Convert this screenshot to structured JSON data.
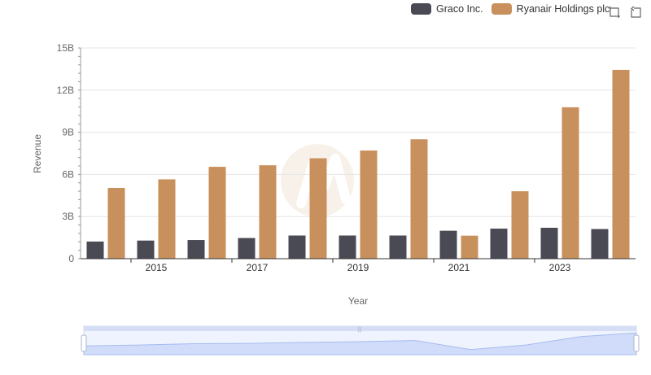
{
  "legend": {
    "items": [
      {
        "label": "Graco Inc.",
        "color": "#4a4a55"
      },
      {
        "label": "Ryanair Holdings plc",
        "color": "#c8905c"
      }
    ]
  },
  "toolbox": {
    "icons": [
      "zoom-icon",
      "restore-icon"
    ]
  },
  "chart_data": {
    "type": "bar",
    "categories": [
      "2014",
      "2015",
      "2016",
      "2017",
      "2018",
      "2019",
      "2020",
      "2021",
      "2022",
      "2023",
      "2024"
    ],
    "x_tick_labels": [
      "2015",
      "2017",
      "2019",
      "2021",
      "2023"
    ],
    "series": [
      {
        "name": "Graco Inc.",
        "color": "#4a4a55",
        "values": [
          1.22,
          1.29,
          1.33,
          1.47,
          1.65,
          1.65,
          1.65,
          1.99,
          2.14,
          2.2,
          2.11
        ]
      },
      {
        "name": "Ryanair Holdings plc",
        "color": "#c8905c",
        "values": [
          5.04,
          5.65,
          6.54,
          6.65,
          7.15,
          7.7,
          8.5,
          1.64,
          4.8,
          10.78,
          13.44
        ]
      }
    ],
    "xlabel": "Year",
    "ylabel": "Revenue",
    "ylim": [
      0,
      15
    ],
    "y_ticks": [
      "0",
      "3B",
      "6B",
      "9B",
      "12B",
      "15B"
    ],
    "grid": true,
    "legend_position": "top-right",
    "data_zoom": true
  }
}
